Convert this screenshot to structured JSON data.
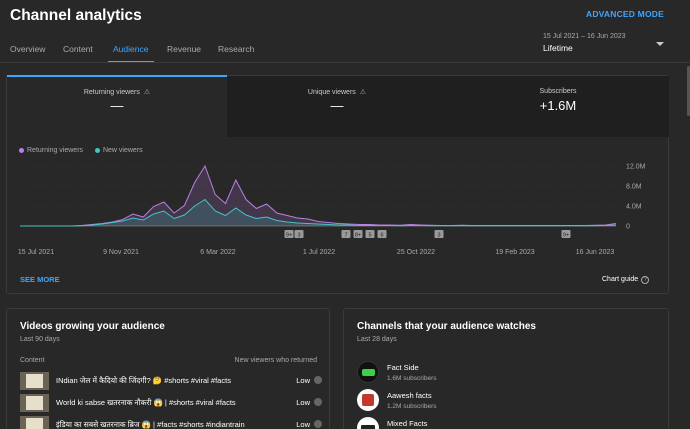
{
  "header": {
    "title": "Channel analytics",
    "advanced_mode": "ADVANCED MODE",
    "tabs": [
      {
        "label": "Overview"
      },
      {
        "label": "Content"
      },
      {
        "label": "Audience"
      },
      {
        "label": "Revenue"
      },
      {
        "label": "Research"
      }
    ],
    "active_tab": "Audience",
    "date_range": "15 Jul 2021 – 16 Jun 2023",
    "period": "Lifetime"
  },
  "metrics": [
    {
      "label": "Returning viewers",
      "value": "—",
      "warning": true
    },
    {
      "label": "Unique viewers",
      "value": "—",
      "warning": true
    },
    {
      "label": "Subscribers",
      "value": "+1.6M",
      "warning": false
    }
  ],
  "chart_data": {
    "type": "area",
    "series": [
      {
        "name": "Returning viewers",
        "color": "#b87fe6",
        "values": [
          0,
          0,
          0,
          0,
          0,
          0,
          0.1,
          0.3,
          0.5,
          0.8,
          1.3,
          2.4,
          1.8,
          3.9,
          4.8,
          2.6,
          4.1,
          8.7,
          12.0,
          6.3,
          4.5,
          9.2,
          5.3,
          3.5,
          4.4,
          2.6,
          2.1,
          1.6,
          1.4,
          0.9,
          0.7,
          0.5,
          0.4,
          0.3,
          0.3,
          0.2,
          0.2,
          0.15,
          0.3,
          0.2,
          0.15,
          0.1,
          0.1,
          0.15,
          0.1,
          0.1,
          0.1,
          0.1,
          0.1,
          0.1,
          0.1,
          0.1,
          0.1,
          0.1,
          0.1,
          0.1,
          0.15,
          0.2,
          0.5
        ]
      },
      {
        "name": "New viewers",
        "color": "#45c3c6",
        "values": [
          0,
          0,
          0,
          0,
          0,
          0,
          0.05,
          0.2,
          0.4,
          0.7,
          1.0,
          1.6,
          1.2,
          2.4,
          3.0,
          1.5,
          2.2,
          4.0,
          5.3,
          3.0,
          2.1,
          3.6,
          2.2,
          1.5,
          1.8,
          1.1,
          0.8,
          0.6,
          0.5,
          0.4,
          0.3,
          0.2,
          0.2,
          0.1,
          0.1,
          0.1,
          0.1,
          0.05,
          0.1,
          0.1,
          0.05,
          0.05,
          0.05,
          0.05,
          0.05,
          0.05,
          0.05,
          0.05,
          0.05,
          0.05,
          0.05,
          0.05,
          0.05,
          0.05,
          0.05,
          0.05,
          0.05,
          0.1,
          0.2
        ]
      }
    ],
    "x_labels": [
      "15 Jul 2021",
      "9 Nov 2021",
      "6 Mar 2022",
      "1 Jul 2022",
      "25 Oct 2022",
      "19 Feb 2023",
      "16 Jun 2023"
    ],
    "y_ticks": [
      "12.0M",
      "8.0M",
      "4.0M",
      "0"
    ],
    "ylim": [
      0,
      12
    ],
    "markers": [
      "9+",
      "3",
      "7",
      "8+",
      "5",
      "6",
      "3",
      "9+"
    ],
    "grid": true,
    "legend": "top-left"
  },
  "chart_footer": {
    "see_more": "SEE MORE",
    "chart_guide": "Chart guide"
  },
  "videos_card": {
    "title": "Videos growing your audience",
    "subtitle": "Last 90 days",
    "col_content": "Content",
    "col_metric": "New viewers who returned",
    "rows": [
      {
        "title": "INdian जेल में कैदियो की जिंदगी? 🤔 #shorts #viral #facts",
        "value": "Low"
      },
      {
        "title": "World ki sabse खतरनाक नौकरी 😱 | #shorts #viral #facts",
        "value": "Low"
      },
      {
        "title": "इंडिया का सबसे खतरनाक ब्रिज 😱 | #facts #shorts #indiantrain",
        "value": "Low"
      }
    ]
  },
  "channels_card": {
    "title": "Channels that your audience watches",
    "subtitle": "Last 28 days",
    "rows": [
      {
        "name": "Fact Side",
        "subs": "1.6M subscribers",
        "avatar_color": "#111111"
      },
      {
        "name": "Aawesh facts",
        "subs": "1.2M subscribers",
        "avatar_color": "#c0392b"
      },
      {
        "name": "Mixed Facts",
        "subs": "",
        "avatar_color": "#ffffff"
      }
    ]
  }
}
